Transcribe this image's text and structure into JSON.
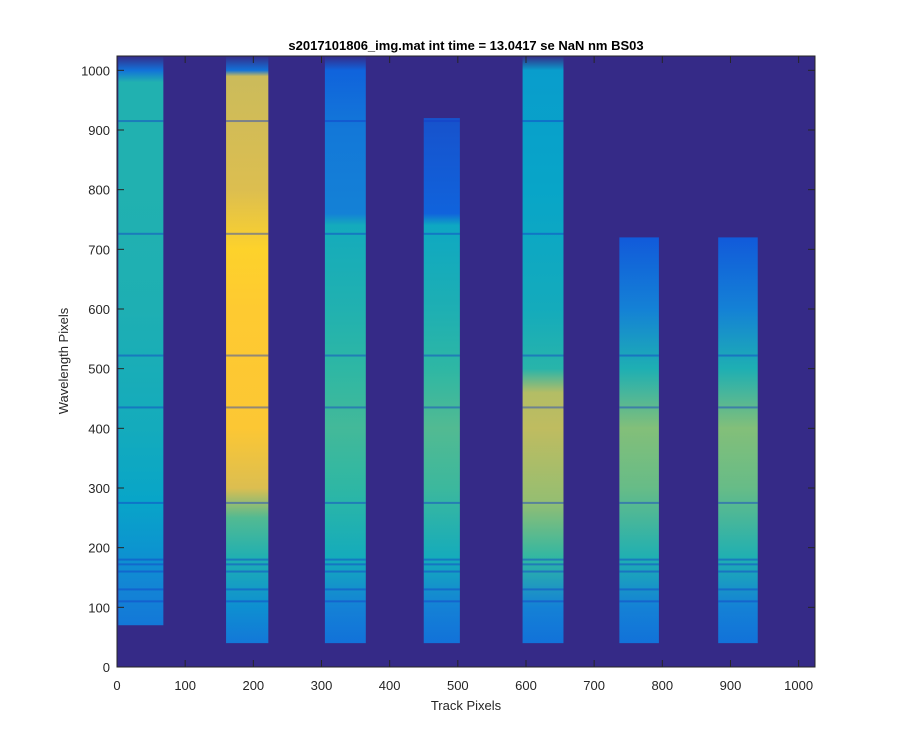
{
  "chart_data": {
    "type": "heatmap",
    "title": "s2017101806_img.mat int time = 13.0417 se  NaN nm BS03",
    "xlabel": "Track Pixels",
    "ylabel": "Wavelength Pixels",
    "xlim": [
      0,
      1024
    ],
    "ylim": [
      0,
      1024
    ],
    "xticks": [
      0,
      100,
      200,
      300,
      400,
      500,
      600,
      700,
      800,
      900,
      1000
    ],
    "yticks": [
      0,
      100,
      200,
      300,
      400,
      500,
      600,
      700,
      800,
      900,
      1000
    ],
    "background_value": 0.0,
    "colormap": "parula",
    "colormap_stops": [
      "#352a87",
      "#0f5cdd",
      "#1481d6",
      "#06a4ca",
      "#2eb7a4",
      "#87bf77",
      "#d1bb59",
      "#fec832",
      "#f9fb0e"
    ],
    "grid": false,
    "bands": [
      {
        "x_start": 2,
        "x_end": 68,
        "y_profile": [
          [
            70,
            0.22
          ],
          [
            130,
            0.26
          ],
          [
            200,
            0.32
          ],
          [
            280,
            0.38
          ],
          [
            400,
            0.42
          ],
          [
            600,
            0.45
          ],
          [
            800,
            0.46
          ],
          [
            980,
            0.46
          ],
          [
            1000,
            0.2
          ],
          [
            1024,
            0.0
          ]
        ]
      },
      {
        "x_start": 160,
        "x_end": 222,
        "y_profile": [
          [
            40,
            0.22
          ],
          [
            100,
            0.3
          ],
          [
            180,
            0.45
          ],
          [
            250,
            0.55
          ],
          [
            300,
            0.78
          ],
          [
            400,
            0.87
          ],
          [
            600,
            0.88
          ],
          [
            700,
            0.9
          ],
          [
            800,
            0.78
          ],
          [
            990,
            0.74
          ],
          [
            1000,
            0.2
          ],
          [
            1024,
            0.0
          ]
        ]
      },
      {
        "x_start": 305,
        "x_end": 365,
        "y_profile": [
          [
            40,
            0.2
          ],
          [
            100,
            0.25
          ],
          [
            180,
            0.42
          ],
          [
            300,
            0.5
          ],
          [
            400,
            0.53
          ],
          [
            500,
            0.5
          ],
          [
            600,
            0.46
          ],
          [
            740,
            0.42
          ],
          [
            760,
            0.25
          ],
          [
            900,
            0.22
          ],
          [
            1000,
            0.15
          ],
          [
            1024,
            0.0
          ]
        ]
      },
      {
        "x_start": 450,
        "x_end": 503,
        "y_profile": [
          [
            40,
            0.2
          ],
          [
            100,
            0.25
          ],
          [
            180,
            0.42
          ],
          [
            300,
            0.52
          ],
          [
            400,
            0.55
          ],
          [
            500,
            0.5
          ],
          [
            600,
            0.45
          ],
          [
            740,
            0.4
          ],
          [
            760,
            0.15
          ],
          [
            920,
            0.1
          ]
        ]
      },
      {
        "x_start": 595,
        "x_end": 655,
        "y_profile": [
          [
            40,
            0.2
          ],
          [
            100,
            0.25
          ],
          [
            180,
            0.5
          ],
          [
            280,
            0.65
          ],
          [
            400,
            0.72
          ],
          [
            460,
            0.7
          ],
          [
            500,
            0.48
          ],
          [
            600,
            0.42
          ],
          [
            800,
            0.38
          ],
          [
            1000,
            0.35
          ],
          [
            1024,
            0.0
          ]
        ]
      },
      {
        "x_start": 737,
        "x_end": 795,
        "y_profile": [
          [
            40,
            0.2
          ],
          [
            100,
            0.25
          ],
          [
            180,
            0.45
          ],
          [
            300,
            0.58
          ],
          [
            400,
            0.62
          ],
          [
            500,
            0.45
          ],
          [
            600,
            0.25
          ],
          [
            720,
            0.12
          ]
        ]
      },
      {
        "x_start": 882,
        "x_end": 940,
        "y_profile": [
          [
            40,
            0.2
          ],
          [
            100,
            0.25
          ],
          [
            180,
            0.45
          ],
          [
            300,
            0.58
          ],
          [
            400,
            0.62
          ],
          [
            500,
            0.45
          ],
          [
            600,
            0.25
          ],
          [
            720,
            0.12
          ]
        ]
      }
    ],
    "dark_lines_y": [
      110,
      130,
      160,
      172,
      180,
      275,
      435,
      522,
      726,
      915
    ]
  }
}
